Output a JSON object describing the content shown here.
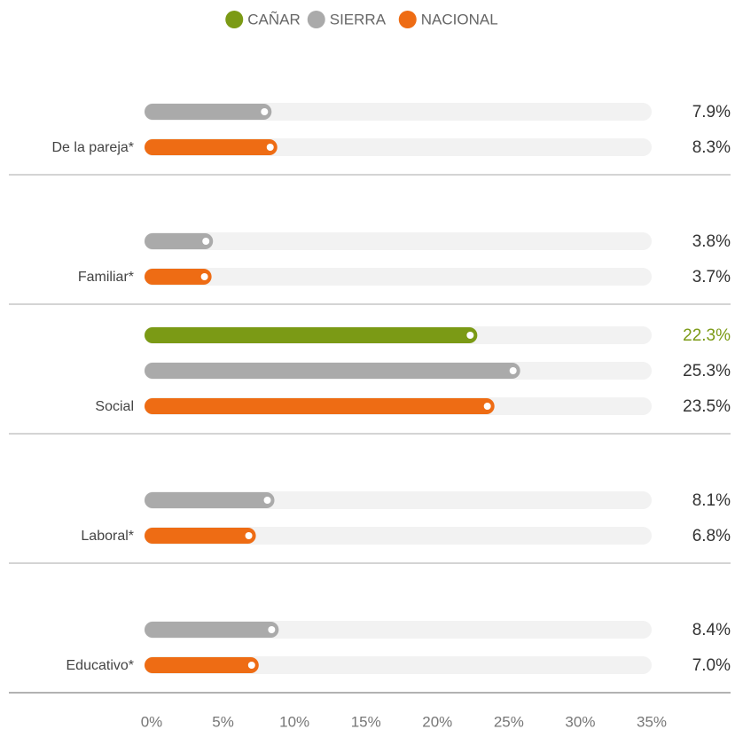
{
  "chart_data": {
    "type": "bar",
    "orientation": "horizontal",
    "categories": [
      "De la pareja*",
      "Familiar*",
      "Social",
      "Laboral*",
      "Educativo*"
    ],
    "series": [
      {
        "name": "CAÑAR",
        "color": "#7b9a15",
        "values": [
          null,
          null,
          22.3,
          null,
          null
        ],
        "value_labels": [
          null,
          null,
          "22.3%",
          null,
          null
        ]
      },
      {
        "name": "SIERRA",
        "color": "#aaaaaa",
        "values": [
          7.9,
          3.8,
          25.3,
          8.1,
          8.4
        ],
        "value_labels": [
          "7.9%",
          "3.8%",
          "25.3%",
          "8.1%",
          "8.4%"
        ]
      },
      {
        "name": "NACIONAL",
        "color": "#ee6c14",
        "values": [
          8.3,
          3.7,
          23.5,
          6.8,
          7.0
        ],
        "value_labels": [
          "8.3%",
          "3.7%",
          "23.5%",
          "6.8%",
          "7.0%"
        ]
      }
    ],
    "xlim": [
      0,
      35
    ],
    "xticks": [
      {
        "value": 0,
        "label": "0%"
      },
      {
        "value": 5,
        "label": "5%"
      },
      {
        "value": 10,
        "label": "10%"
      },
      {
        "value": 15,
        "label": "15%"
      },
      {
        "value": 20,
        "label": "20%"
      },
      {
        "value": 25,
        "label": "25%"
      },
      {
        "value": 30,
        "label": "30%"
      },
      {
        "value": 35,
        "label": "35%"
      }
    ],
    "legend": "top"
  }
}
